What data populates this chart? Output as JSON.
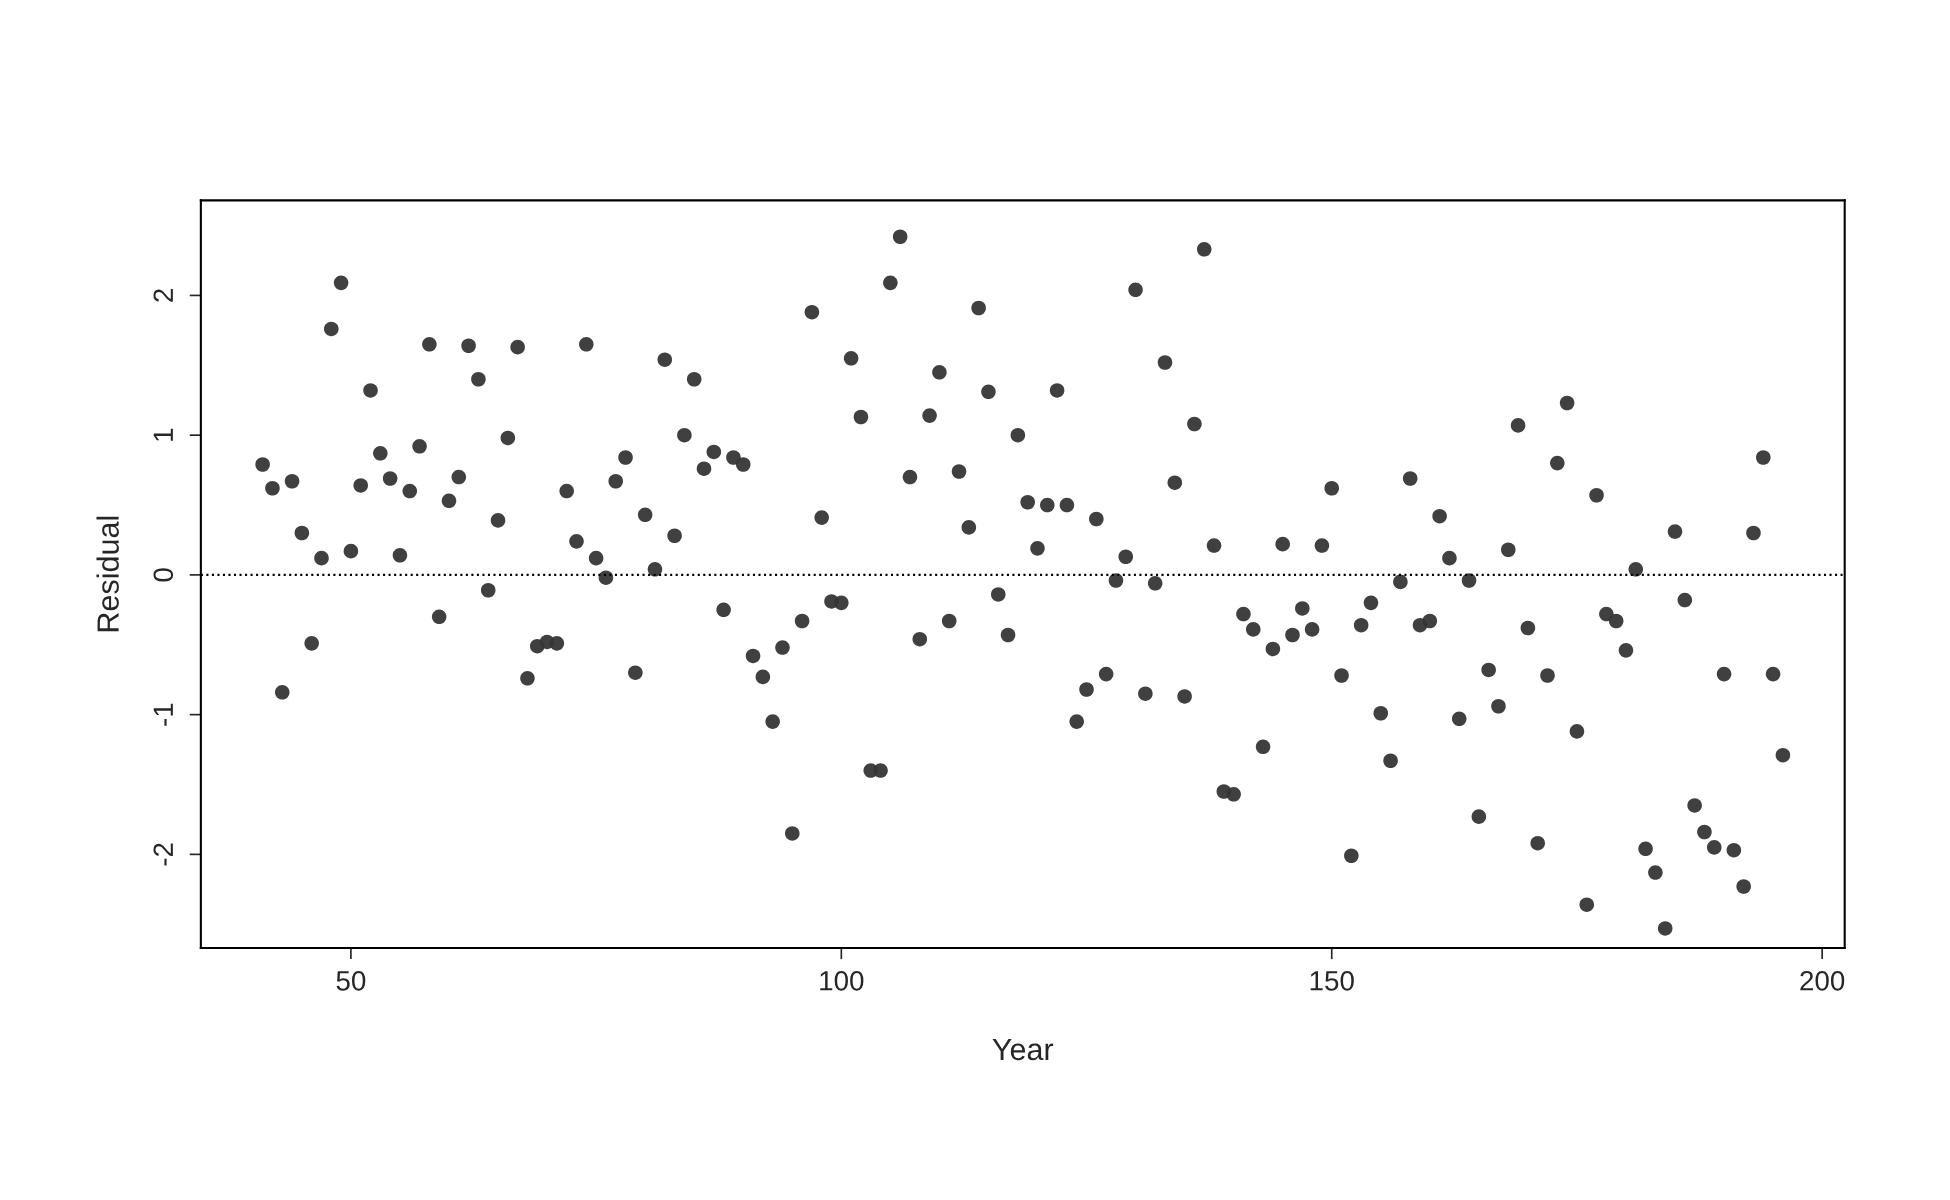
{
  "chart_data": {
    "type": "scatter",
    "xlabel": "Year",
    "ylabel": "Residual",
    "x": [
      41,
      42,
      43,
      44,
      45,
      46,
      47,
      48,
      49,
      50,
      51,
      52,
      53,
      54,
      55,
      56,
      57,
      58,
      59,
      60,
      61,
      62,
      63,
      64,
      65,
      66,
      67,
      68,
      69,
      70,
      71,
      72,
      73,
      74,
      75,
      76,
      77,
      78,
      79,
      80,
      81,
      82,
      83,
      84,
      85,
      86,
      87,
      88,
      89,
      90,
      91,
      92,
      93,
      94,
      95,
      96,
      97,
      98,
      99,
      100,
      101,
      102,
      103,
      104,
      105,
      106,
      107,
      108,
      109,
      110,
      111,
      112,
      113,
      114,
      115,
      116,
      117,
      118,
      119,
      120,
      121,
      122,
      123,
      124,
      125,
      126,
      127,
      128,
      129,
      130,
      131,
      132,
      133,
      134,
      135,
      136,
      137,
      138,
      139,
      140,
      141,
      142,
      143,
      144,
      145,
      146,
      147,
      148,
      149,
      150,
      151,
      152,
      153,
      154,
      155,
      156,
      157,
      158,
      159,
      160,
      161,
      162,
      163,
      164,
      165,
      166,
      167,
      168,
      169,
      170,
      171,
      172,
      173,
      174,
      175,
      176,
      177,
      178,
      179,
      180,
      181,
      182,
      183,
      184,
      185,
      186,
      187,
      188,
      189,
      190,
      191,
      192,
      193,
      194,
      195,
      196
    ],
    "series": [
      {
        "color": "#363636",
        "values": [
          0.79,
          0.62,
          -0.84,
          0.67,
          0.3,
          -0.49,
          0.12,
          1.76,
          2.09,
          0.17,
          0.64,
          1.32,
          0.87,
          0.69,
          0.14,
          0.6,
          0.92,
          1.65,
          -0.3,
          0.53,
          0.7,
          1.64,
          1.4,
          -0.11,
          0.39,
          0.98,
          1.63,
          -0.74,
          -0.51,
          -0.48,
          -0.49,
          0.6,
          0.24,
          1.65,
          0.12,
          -0.02,
          0.67,
          0.84,
          -0.7,
          0.43,
          0.04,
          1.54,
          0.28,
          1.0,
          1.4,
          0.76,
          0.88,
          -0.25,
          0.84,
          0.79,
          -0.58,
          -0.73,
          -1.05,
          -0.52,
          -1.85,
          -0.33,
          1.88,
          0.41,
          -0.19,
          -0.2,
          1.55,
          1.13,
          -1.4,
          -1.4,
          2.09,
          2.42,
          0.7,
          -0.46,
          1.14,
          1.45,
          -0.33,
          0.74,
          0.34,
          1.91,
          1.31,
          -0.14,
          -0.43,
          1.0,
          0.52,
          0.19,
          0.5,
          1.32,
          0.5,
          -1.05,
          -0.82,
          0.4,
          -0.71,
          -0.04,
          0.13,
          2.04,
          -0.85,
          -0.06,
          1.52,
          0.66,
          -0.87,
          1.08,
          2.33,
          0.21,
          -1.55,
          -1.57,
          -0.28,
          -0.39,
          -1.23,
          -0.53,
          0.22,
          -0.43,
          -0.24,
          -0.39,
          0.21,
          0.62,
          -0.72,
          -2.01,
          -0.36,
          -0.2,
          -0.99,
          -1.33,
          -0.05,
          0.69,
          -0.36,
          -0.33,
          0.42,
          0.12,
          -1.03,
          -0.04,
          -1.73,
          -0.68,
          -0.94,
          0.18,
          1.07,
          -0.38,
          -1.92,
          -0.72,
          0.8,
          1.23,
          -1.12,
          -2.36,
          0.57,
          -0.28,
          -0.33,
          -0.54,
          0.04,
          -1.96,
          -2.13,
          -2.53,
          0.31,
          -0.18,
          -1.65,
          -1.84,
          -1.95,
          -0.71,
          -1.97,
          -2.23,
          0.3,
          0.84,
          -0.71,
          -1.29
        ]
      }
    ],
    "xlim": [
      34.7,
      202.3
    ],
    "ylim": [
      -2.67,
      2.68
    ],
    "xticks": [
      50,
      100,
      150,
      200
    ],
    "yticks": [
      -2,
      -1,
      0,
      1,
      2
    ],
    "ref_lines": [
      {
        "axis": "y",
        "value": 0,
        "color": "#000000",
        "line_style": "dotted"
      }
    ],
    "marker": "circle",
    "grid": false,
    "legend": false
  }
}
